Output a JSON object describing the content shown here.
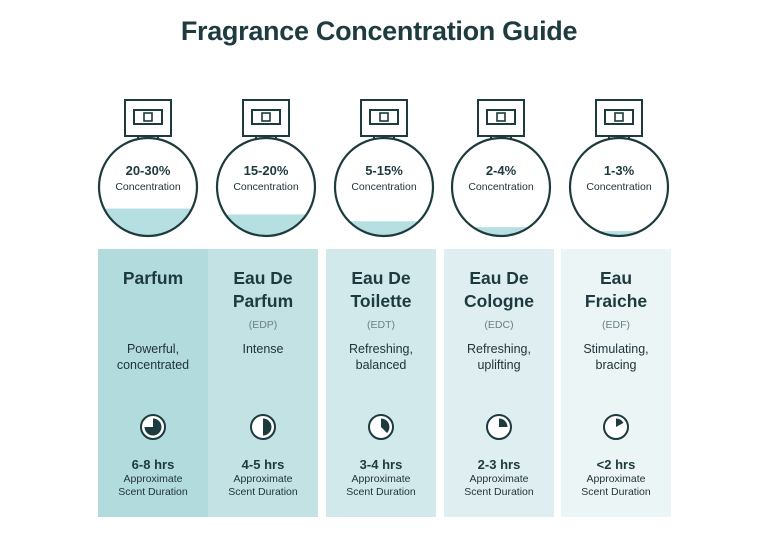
{
  "title": "Fragrance Concentration Guide",
  "colors": {
    "title": "#1e3b3f",
    "liquid": "#b6dfe1",
    "outline": "#1d3a3e",
    "column_backgrounds": [
      "#b2dbde",
      "#c3e2e4",
      "#d1e9eb",
      "#dfeff1",
      "#ebf5f6"
    ]
  },
  "fragrances": [
    {
      "concentration": "20-30%",
      "concentration_label": "Concentration",
      "liquid_fill": 0.28,
      "name_lines": [
        "Parfum"
      ],
      "abbreviation": "",
      "description_lines": [
        "Powerful,",
        "concentrated"
      ],
      "duration_fraction": 0.75,
      "hours": "6-8 hrs",
      "duration_label_lines": [
        "Approximate",
        "Scent Duration"
      ],
      "pie_icon": "clock-pie-icon"
    },
    {
      "concentration": "15-20%",
      "concentration_label": "Concentration",
      "liquid_fill": 0.22,
      "name_lines": [
        "Eau De",
        "Parfum"
      ],
      "abbreviation": "(EDP)",
      "description_lines": [
        "Intense"
      ],
      "duration_fraction": 0.5,
      "hours": "4-5 hrs",
      "duration_label_lines": [
        "Approximate",
        "Scent Duration"
      ],
      "pie_icon": "clock-pie-icon"
    },
    {
      "concentration": "5-15%",
      "concentration_label": "Concentration",
      "liquid_fill": 0.15,
      "name_lines": [
        "Eau De",
        "Toilette"
      ],
      "abbreviation": "(EDT)",
      "description_lines": [
        "Refreshing,",
        "balanced"
      ],
      "duration_fraction": 0.375,
      "hours": "3-4 hrs",
      "duration_label_lines": [
        "Approximate",
        "Scent Duration"
      ],
      "pie_icon": "clock-pie-icon"
    },
    {
      "concentration": "2-4%",
      "concentration_label": "Concentration",
      "liquid_fill": 0.09,
      "name_lines": [
        "Eau De",
        "Cologne"
      ],
      "abbreviation": "(EDC)",
      "description_lines": [
        "Refreshing,",
        "uplifting"
      ],
      "duration_fraction": 0.25,
      "hours": "2-3 hrs",
      "duration_label_lines": [
        "Approximate",
        "Scent Duration"
      ],
      "pie_icon": "clock-pie-icon"
    },
    {
      "concentration": "1-3%",
      "concentration_label": "Concentration",
      "liquid_fill": 0.05,
      "name_lines": [
        "Eau",
        "Fraiche"
      ],
      "abbreviation": "(EDF)",
      "description_lines": [
        "Stimulating,",
        "bracing"
      ],
      "duration_fraction": 0.17,
      "hours": "<2 hrs",
      "duration_label_lines": [
        "Approximate",
        "Scent Duration"
      ],
      "pie_icon": "clock-pie-icon"
    }
  ]
}
